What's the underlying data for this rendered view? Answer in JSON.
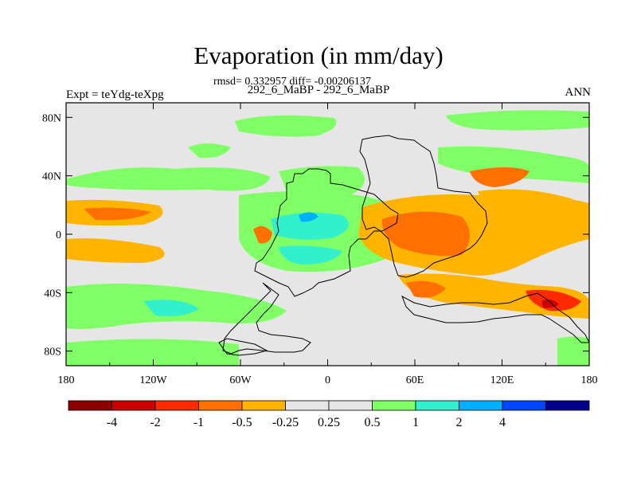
{
  "title": "Evaporation (in mm/day)",
  "stats_line": "rmsd= 0.332957 diff= -0.00206137",
  "cases_line": "292_6_MaBP - 292_6_MaBP",
  "expt_label": "Expt = teYdg-teXpg",
  "season_label": "ANN",
  "axes": {
    "x_ticks": [
      "180",
      "120W",
      "60W",
      "0",
      "60E",
      "120E",
      "180"
    ],
    "y_ticks": [
      "80N",
      "40N",
      "0",
      "40S",
      "80S"
    ]
  },
  "colorbar": {
    "colors": [
      "#8b0000",
      "#cc0000",
      "#ff2a00",
      "#ff7000",
      "#ffb400",
      "#e6e6e6",
      "#e6e6e6",
      "#80ff66",
      "#33f0cc",
      "#00b0ff",
      "#0044ff",
      "#00008b"
    ],
    "labels": [
      "-4",
      "-2",
      "-1",
      "-0.5",
      "-0.25",
      "0.25",
      "0.5",
      "1",
      "2",
      "4"
    ]
  },
  "palette": {
    "neutral": "#e6e6e6",
    "green": "#80ff66",
    "cyan": "#33f0cc",
    "blue": "#00b0ff",
    "orange": "#ffb400",
    "dark_orange": "#ff7000",
    "red": "#ff2a00",
    "dark_red": "#cc0000"
  }
}
